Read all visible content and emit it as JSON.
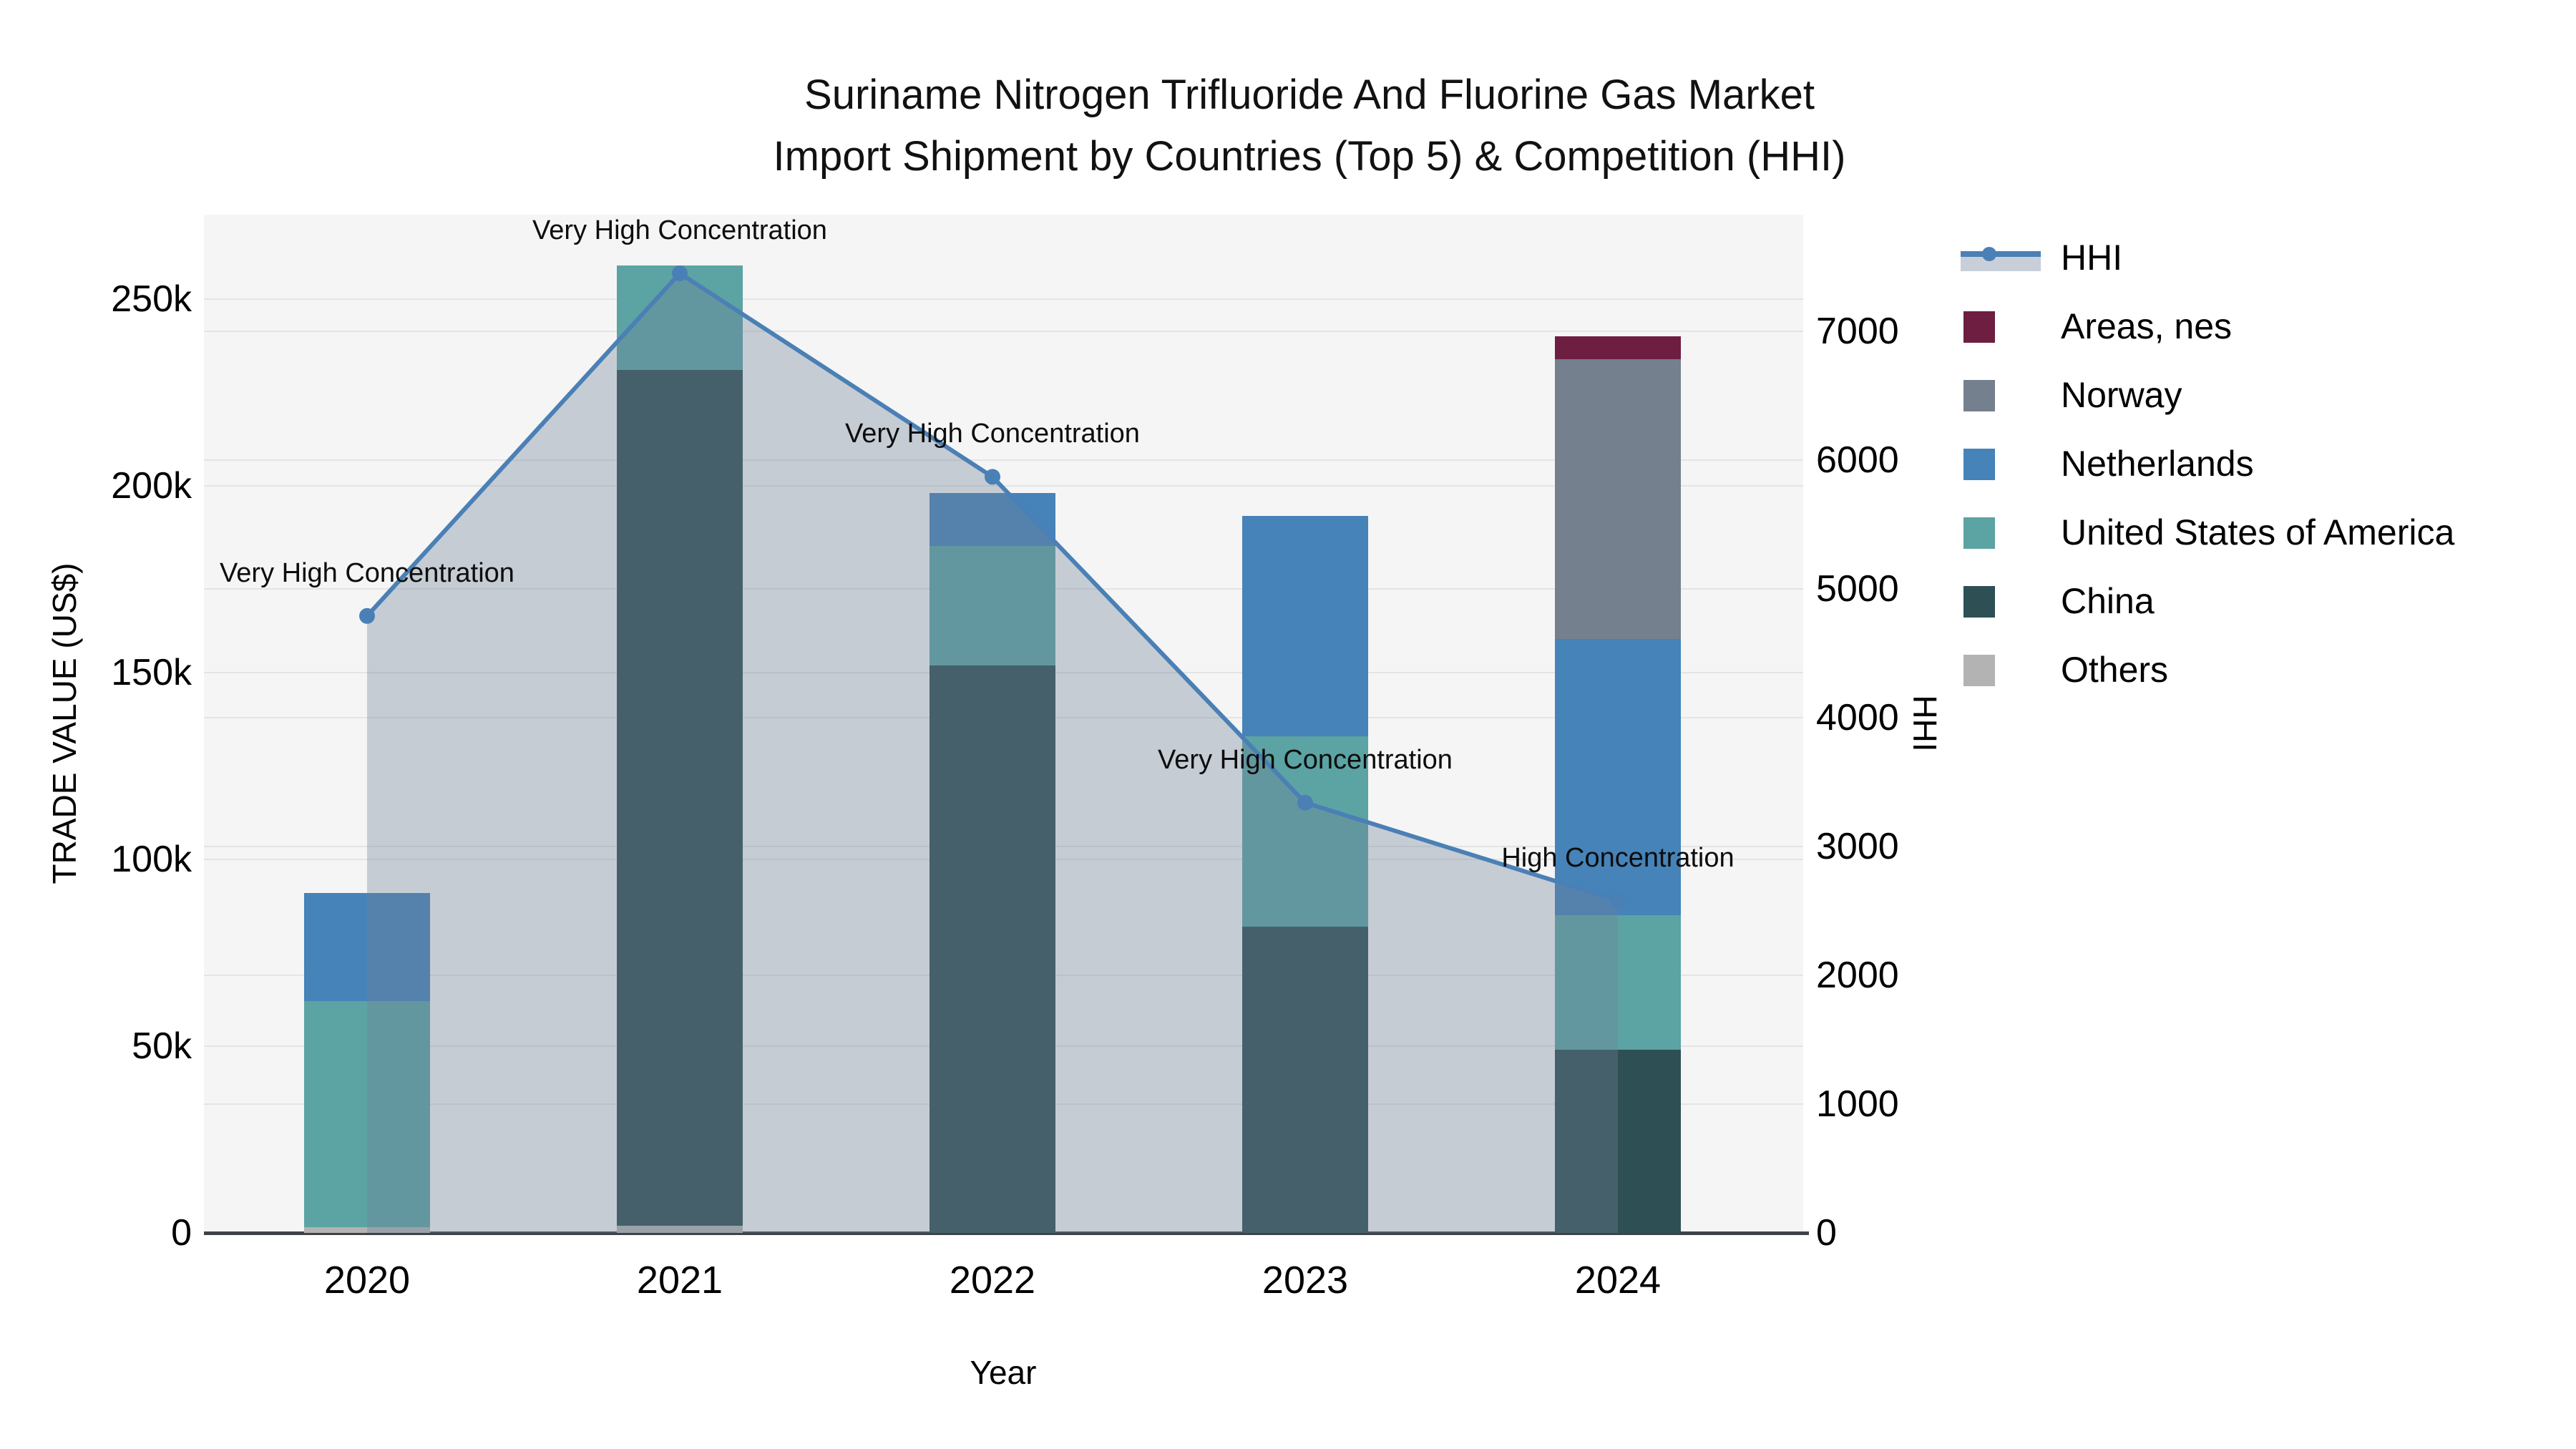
{
  "title": {
    "line1": "Suriname Nitrogen Trifluoride And Fluorine Gas Market",
    "line2": "Import Shipment by Countries (Top 5) & Competition (HHI)"
  },
  "axes": {
    "x": {
      "label": "Year",
      "ticks": [
        "2020",
        "2021",
        "2022",
        "2023",
        "2024"
      ]
    },
    "y_left": {
      "label": "TRADE VALUE (US$)",
      "ticks": [
        "0",
        "50k",
        "100k",
        "150k",
        "200k",
        "250k"
      ],
      "tick_values": [
        0,
        50000,
        100000,
        150000,
        200000,
        250000
      ]
    },
    "y_right": {
      "label": "HHI",
      "ticks": [
        "0",
        "1000",
        "2000",
        "3000",
        "4000",
        "5000",
        "6000",
        "7000"
      ],
      "tick_values": [
        0,
        1000,
        2000,
        3000,
        4000,
        5000,
        6000,
        7000
      ]
    }
  },
  "legend": {
    "items": [
      {
        "label": "HHI",
        "type": "line",
        "color": "#4a80b5"
      },
      {
        "label": "Areas, nes",
        "type": "swatch",
        "color": "#6d1e41"
      },
      {
        "label": "Norway",
        "type": "swatch",
        "color": "#74808e"
      },
      {
        "label": "Netherlands",
        "type": "swatch",
        "color": "#4583b8"
      },
      {
        "label": "United States of America",
        "type": "swatch",
        "color": "#5ca3a3"
      },
      {
        "label": "China",
        "type": "swatch",
        "color": "#2e4f54"
      },
      {
        "label": "Others",
        "type": "swatch",
        "color": "#b3b3b3"
      }
    ]
  },
  "chart_data": {
    "type": "bar",
    "subtype": "stacked-bars-with-line-overlay",
    "title": "Suriname Nitrogen Trifluoride And Fluorine Gas Market Import Shipment by Countries (Top 5) & Competition (HHI)",
    "xlabel": "Year",
    "ylabel_left": "TRADE VALUE (US$)",
    "ylabel_right": "HHI",
    "ylim_left": [
      0,
      272000
    ],
    "ylim_right": [
      0,
      7900
    ],
    "grid": true,
    "legend_position": "right",
    "categories": [
      "2020",
      "2021",
      "2022",
      "2023",
      "2024"
    ],
    "bar_unit": "US$",
    "series": [
      {
        "name": "Others",
        "color": "#b3b3b3",
        "values": [
          1500,
          2000,
          0,
          0,
          0
        ]
      },
      {
        "name": "China",
        "color": "#2e4f54",
        "values": [
          0,
          229000,
          152000,
          82000,
          49000
        ]
      },
      {
        "name": "United States of America",
        "color": "#5ca3a3",
        "values": [
          60500,
          28000,
          32000,
          51000,
          36000
        ]
      },
      {
        "name": "Netherlands",
        "color": "#4583b8",
        "values": [
          29000,
          0,
          14000,
          59000,
          74000
        ]
      },
      {
        "name": "Norway",
        "color": "#74808e",
        "values": [
          0,
          0,
          0,
          0,
          75000
        ]
      },
      {
        "name": "Areas, nes",
        "color": "#6d1e41",
        "values": [
          0,
          0,
          0,
          0,
          6000
        ]
      }
    ],
    "bar_totals": [
      91000,
      259000,
      198000,
      192000,
      240000
    ],
    "line": {
      "name": "HHI",
      "axis": "right",
      "color": "#4a80b5",
      "fill_color": "rgba(113,128,153,0.35)",
      "values": [
        4790,
        7450,
        5870,
        3340,
        2580
      ]
    },
    "annotations": [
      {
        "category": "2020",
        "text": "Very High Concentration"
      },
      {
        "category": "2021",
        "text": "Very High Concentration"
      },
      {
        "category": "2022",
        "text": "Very High Concentration"
      },
      {
        "category": "2023",
        "text": "Very High Concentration"
      },
      {
        "category": "2024",
        "text": "High Concentration"
      }
    ]
  }
}
